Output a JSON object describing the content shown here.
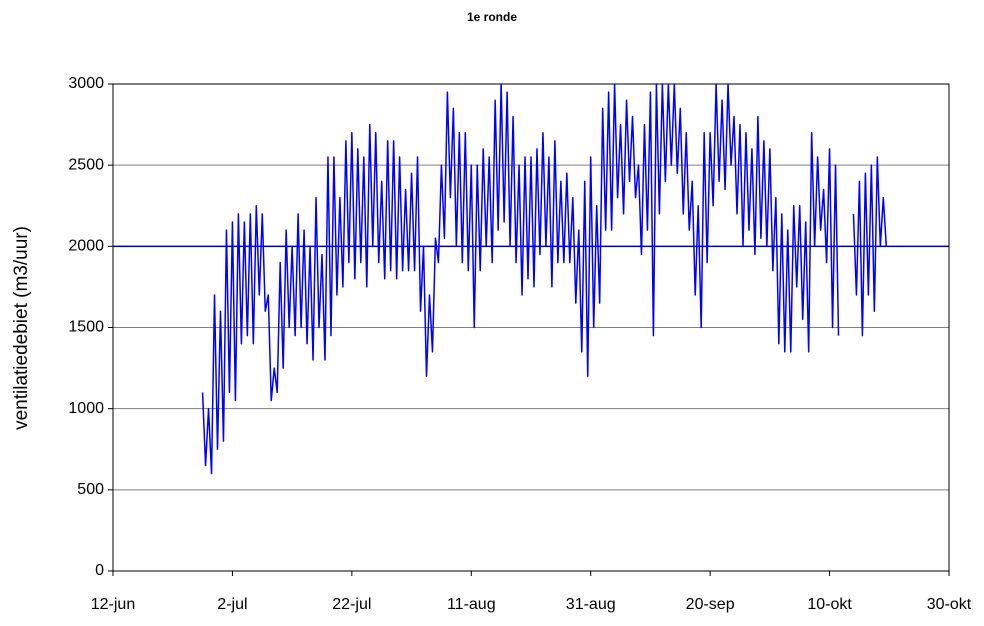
{
  "chart_data": {
    "type": "line",
    "title": "1e ronde",
    "ylabel": "ventilatiedebiet (m3/uur)",
    "xlim": [
      "12-jun",
      "30-okt"
    ],
    "xticks": [
      "12-jun",
      "2-jul",
      "22-jul",
      "11-aug",
      "31-aug",
      "20-sep",
      "10-okt",
      "30-okt"
    ],
    "ylim": [
      0,
      3000
    ],
    "yticks": [
      0,
      500,
      1000,
      1500,
      2000,
      2500,
      3000
    ],
    "grid": true,
    "reference_line": {
      "value": 2000,
      "color": "#000080"
    },
    "x": [
      "27-jun",
      "27-jun",
      "28-jun",
      "28-jun",
      "29-jun",
      "29-jun",
      "30-jun",
      "30-jun",
      "1-jul",
      "1-jul",
      "2-jul",
      "2-jul",
      "3-jul",
      "3-jul",
      "4-jul",
      "4-jul",
      "5-jul",
      "5-jul",
      "6-jul",
      "6-jul",
      "7-jul",
      "7-jul",
      "8-jul",
      "8-jul",
      "9-jul",
      "9-jul",
      "10-jul",
      "10-jul",
      "11-jul",
      "11-jul",
      "12-jul",
      "12-jul",
      "13-jul",
      "13-jul",
      "14-jul",
      "14-jul",
      "15-jul",
      "15-jul",
      "16-jul",
      "16-jul",
      "17-jul",
      "17-jul",
      "18-jul",
      "18-jul",
      "19-jul",
      "19-jul",
      "20-jul",
      "20-jul",
      "21-jul",
      "21-jul",
      "22-jul",
      "22-jul",
      "23-jul",
      "23-jul",
      "24-jul",
      "24-jul",
      "25-jul",
      "25-jul",
      "26-jul",
      "26-jul",
      "27-jul",
      "27-jul",
      "28-jul",
      "28-jul",
      "29-jul",
      "29-jul",
      "30-jul",
      "30-jul",
      "31-jul",
      "31-jul",
      "1-aug",
      "1-aug",
      "2-aug",
      "2-aug",
      "3-aug",
      "3-aug",
      "4-aug",
      "4-aug",
      "5-aug",
      "5-aug",
      "6-aug",
      "6-aug",
      "7-aug",
      "7-aug",
      "8-aug",
      "8-aug",
      "9-aug",
      "9-aug",
      "10-aug",
      "10-aug",
      "11-aug",
      "11-aug",
      "12-aug",
      "12-aug",
      "13-aug",
      "13-aug",
      "14-aug",
      "14-aug",
      "15-aug",
      "15-aug",
      "16-aug",
      "16-aug",
      "17-aug",
      "17-aug",
      "18-aug",
      "18-aug",
      "19-aug",
      "19-aug",
      "20-aug",
      "20-aug",
      "21-aug",
      "21-aug",
      "22-aug",
      "22-aug",
      "23-aug",
      "23-aug",
      "24-aug",
      "24-aug",
      "25-aug",
      "25-aug",
      "26-aug",
      "26-aug",
      "27-aug",
      "27-aug",
      "28-aug",
      "28-aug",
      "29-aug",
      "29-aug",
      "30-aug",
      "30-aug",
      "31-aug",
      "31-aug",
      "1-sep",
      "1-sep",
      "2-sep",
      "2-sep",
      "3-sep",
      "3-sep",
      "4-sep",
      "4-sep",
      "5-sep",
      "5-sep",
      "6-sep",
      "6-sep",
      "7-sep",
      "7-sep",
      "8-sep",
      "8-sep",
      "9-sep",
      "9-sep",
      "10-sep",
      "10-sep",
      "11-sep",
      "11-sep",
      "12-sep",
      "12-sep",
      "13-sep",
      "13-sep",
      "14-sep",
      "14-sep",
      "15-sep",
      "15-sep",
      "16-sep",
      "16-sep",
      "17-sep",
      "17-sep",
      "18-sep",
      "18-sep",
      "19-sep",
      "19-sep",
      "20-sep",
      "20-sep",
      "21-sep",
      "21-sep",
      "22-sep",
      "22-sep",
      "23-sep",
      "23-sep",
      "24-sep",
      "24-sep",
      "25-sep",
      "25-sep",
      "26-sep",
      "26-sep",
      "27-sep",
      "27-sep",
      "28-sep",
      "28-sep",
      "29-sep",
      "29-sep",
      "30-sep",
      "30-sep",
      "1-okt",
      "1-okt",
      "2-okt",
      "2-okt",
      "3-okt",
      "3-okt",
      "4-okt",
      "4-okt",
      "5-okt",
      "5-okt",
      "6-okt",
      "6-okt",
      "7-okt",
      "7-okt",
      "8-okt",
      "8-okt",
      "9-okt",
      "9-okt",
      "10-okt",
      "10-okt",
      "11-okt",
      "11-okt",
      "12-okt",
      "14-okt",
      "14-okt",
      "15-okt",
      "15-okt",
      "16-okt",
      "16-okt",
      "17-okt",
      "17-okt",
      "18-okt",
      "18-okt",
      "19-okt",
      "19-okt"
    ],
    "series": [
      {
        "name": "ventilatiedebiet",
        "color": "#0000ff",
        "values": [
          1100,
          650,
          1000,
          600,
          1700,
          750,
          1600,
          800,
          2100,
          1100,
          2150,
          1050,
          2200,
          1400,
          2150,
          1450,
          2200,
          1400,
          2250,
          1700,
          2200,
          1600,
          1700,
          1050,
          1250,
          1100,
          1900,
          1250,
          2100,
          1500,
          2000,
          1450,
          2200,
          1500,
          2100,
          1400,
          2000,
          1300,
          2300,
          1500,
          1950,
          1300,
          2550,
          1450,
          2550,
          1700,
          2300,
          1750,
          2650,
          1900,
          2700,
          1800,
          2600,
          1900,
          2550,
          1750,
          2750,
          2000,
          2700,
          1900,
          2400,
          1800,
          2650,
          1850,
          2650,
          1800,
          2550,
          1850,
          2350,
          1850,
          2450,
          1850,
          2550,
          1600,
          2000,
          1200,
          1700,
          1350,
          2050,
          1900,
          2500,
          2050,
          2950,
          2300,
          2850,
          2000,
          2700,
          1900,
          2700,
          1850,
          2500,
          1500,
          2500,
          1850,
          2600,
          2000,
          2550,
          1900,
          2900,
          2100,
          3000,
          2150,
          2950,
          2000,
          2800,
          1900,
          2500,
          1700,
          2550,
          1800,
          2550,
          1750,
          2600,
          1950,
          2700,
          2000,
          2550,
          1750,
          2650,
          1900,
          2400,
          1900,
          2450,
          1900,
          2300,
          1650,
          2100,
          1350,
          2400,
          1200,
          2550,
          1500,
          2250,
          1650,
          2850,
          2100,
          2950,
          2100,
          3000,
          2300,
          2750,
          2200,
          2900,
          2400,
          2800,
          2300,
          2500,
          1950,
          2750,
          2100,
          2950,
          1450,
          3000,
          2200,
          3000,
          2400,
          3000,
          2500,
          3000,
          2450,
          2850,
          2200,
          2700,
          2100,
          2400,
          1700,
          2250,
          1500,
          2700,
          1900,
          2700,
          2250,
          3000,
          2400,
          2900,
          2350,
          3000,
          2500,
          2800,
          2200,
          2750,
          2000,
          2700,
          2100,
          2600,
          1950,
          2800,
          2050,
          2650,
          2000,
          2600,
          1850,
          2300,
          1400,
          2200,
          1350,
          2100,
          1350,
          2250,
          1750,
          2250,
          1550,
          2150,
          1350,
          2700,
          2000,
          2550,
          2100,
          2350,
          1900,
          2600,
          1500,
          2500,
          1450,
          null,
          2200,
          1700,
          2400,
          1450,
          2450,
          1700,
          2500,
          1600,
          2550,
          2000,
          2300,
          2000
        ]
      }
    ]
  }
}
